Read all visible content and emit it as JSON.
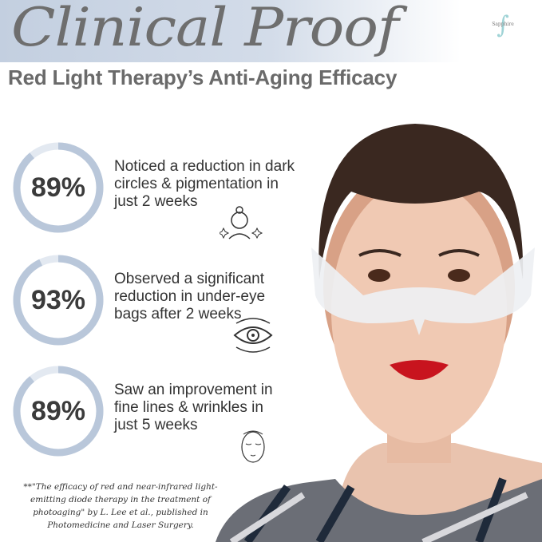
{
  "header": {
    "script_title": "Clinical Proof",
    "subtitle": "Red Light Therapy’s Anti-Aging Efficacy",
    "logo_text": "Sapphire"
  },
  "stats": [
    {
      "percent": "89%",
      "value": 89,
      "lines": [
        "Noticed a reduction in dark",
        "circles & pigmentation in",
        "just 2 weeks"
      ],
      "icon": "face-sparkle-icon"
    },
    {
      "percent": "93%",
      "value": 93,
      "lines": [
        "Observed a significant",
        "reduction in under-eye",
        "bags after 2 weeks"
      ],
      "icon": "eye-icon"
    },
    {
      "percent": "89%",
      "value": 89,
      "lines": [
        "Saw an improvement in",
        "fine lines & wrinkles in",
        "just 5 weeks"
      ],
      "icon": "face-outline-icon"
    }
  ],
  "citation": [
    "**\"The efficacy of red and near-infrared light-",
    "emitting diode therapy in the treatment of",
    "photoaging\" by L. Lee et al., published in",
    "Photomedicine and Laser Surgery."
  ],
  "colors": {
    "ring": "#b9c7da",
    "ring_track": "#e3e9f1",
    "text": "#333333",
    "lips": "#c8141e",
    "banner": "#c3cfe0"
  }
}
